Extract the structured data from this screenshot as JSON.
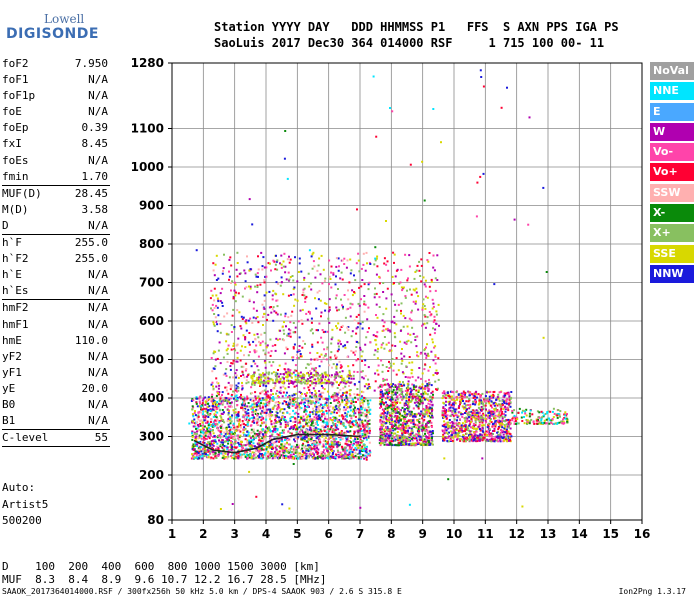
{
  "logo": {
    "line1": "Lowell",
    "line2": "DIGISONDE"
  },
  "header": {
    "line1": "Station YYYY DAY   DDD HHMMSS P1   FFS  S AXN PPS IGA PS",
    "line2": "SaoLuis 2017 Dec30 364 014000 RSF     1 715 100 00- 11"
  },
  "params": [
    {
      "k": "foF2",
      "v": "7.950"
    },
    {
      "k": "foF1",
      "v": "N/A"
    },
    {
      "k": "foF1p",
      "v": "N/A"
    },
    {
      "k": "foE",
      "v": "N/A"
    },
    {
      "k": "foEp",
      "v": "0.39"
    },
    {
      "k": "fxI",
      "v": "8.45"
    },
    {
      "k": "foEs",
      "v": "N/A"
    },
    {
      "k": "fmin",
      "v": "1.70"
    },
    {
      "k": "MUF(D)",
      "v": "28.45"
    },
    {
      "k": "M(D)",
      "v": "3.58"
    },
    {
      "k": "D",
      "v": "N/A"
    },
    {
      "k": "h`F",
      "v": "255.0"
    },
    {
      "k": "h`F2",
      "v": "255.0"
    },
    {
      "k": "h`E",
      "v": "N/A"
    },
    {
      "k": "h`Es",
      "v": "N/A"
    },
    {
      "k": "hmF2",
      "v": "N/A"
    },
    {
      "k": "hmF1",
      "v": "N/A"
    },
    {
      "k": "hmE",
      "v": "110.0"
    },
    {
      "k": "yF2",
      "v": "N/A"
    },
    {
      "k": "yF1",
      "v": "N/A"
    },
    {
      "k": "yE",
      "v": "20.0"
    },
    {
      "k": "B0",
      "v": "N/A"
    },
    {
      "k": "B1",
      "v": "N/A"
    },
    {
      "k": "C-level",
      "v": "55"
    }
  ],
  "auto": {
    "line1": "Auto:",
    "line2": "Artist5",
    "line3": "500200"
  },
  "bottom": {
    "d_line": "D    100  200  400  600  800 1000 1500 3000 [km]",
    "muf_line": "MUF  8.3  8.4  8.9  9.6 10.7 12.2 16.7 28.5 [MHz]"
  },
  "footer": {
    "left": "SAAOK_2017364014000.RSF / 300fx256h 50 kHz 5.0 km / DPS-4 SAAOK 903 / 2.6 S 315.8 E",
    "right": "Ion2Png 1.3.17"
  },
  "legend": [
    {
      "label": "NoVal",
      "bg": "#a0a0a0",
      "fg": "#ffffff"
    },
    {
      "label": "NNE",
      "bg": "#00e5ff",
      "fg": "#ffffff"
    },
    {
      "label": "E",
      "bg": "#4aa8ff",
      "fg": "#ffffff"
    },
    {
      "label": "W",
      "bg": "#b000b0",
      "fg": "#ffffff"
    },
    {
      "label": "Vo-",
      "bg": "#ff44aa",
      "fg": "#ffffff"
    },
    {
      "label": "Vo+",
      "bg": "#ff0033",
      "fg": "#ffffff"
    },
    {
      "label": "SSW",
      "bg": "#ffb0b0",
      "fg": "#ffffff"
    },
    {
      "label": "X-",
      "bg": "#0a8a0a",
      "fg": "#ffffff"
    },
    {
      "label": "X+",
      "bg": "#88c060",
      "fg": "#ffffff"
    },
    {
      "label": "SSE",
      "bg": "#d8d800",
      "fg": "#ffffff"
    },
    {
      "label": "NNW",
      "bg": "#1a1adc",
      "fg": "#ffffff"
    }
  ],
  "chart_data": {
    "type": "scatter",
    "x_ticks": [
      1,
      2,
      3,
      4,
      5,
      6,
      7,
      8,
      9,
      10,
      11,
      12,
      13,
      14,
      15,
      16
    ],
    "y_ticks": [
      80,
      200,
      300,
      400,
      500,
      600,
      700,
      800,
      900,
      1000,
      1100,
      1280
    ],
    "xlim": [
      1,
      16
    ],
    "ylim": [
      80,
      1280
    ],
    "grid": true,
    "clusters": [
      {
        "x": [
          1.6,
          7.3
        ],
        "y": [
          245,
          410
        ],
        "n": 2600,
        "palette": [
          "#ff0033",
          "#ff44aa",
          "#b000b0",
          "#d8d800",
          "#0a8a0a",
          "#1a1adc",
          "#88c060",
          "#00e5ff",
          "#ffb0b0"
        ]
      },
      {
        "x": [
          7.6,
          9.3
        ],
        "y": [
          280,
          440
        ],
        "n": 900,
        "palette": [
          "#ff0033",
          "#ff44aa",
          "#b000b0",
          "#d8d800",
          "#1a1adc",
          "#0a8a0a",
          "#88c060"
        ]
      },
      {
        "x": [
          9.6,
          11.8
        ],
        "y": [
          290,
          420
        ],
        "n": 900,
        "palette": [
          "#ff0033",
          "#ff44aa",
          "#b000b0",
          "#d8d800",
          "#1a1adc",
          "#88c060"
        ]
      },
      {
        "x": [
          11.8,
          13.6
        ],
        "y": [
          335,
          375
        ],
        "n": 140,
        "palette": [
          "#ff0033",
          "#ff44aa",
          "#d8d800",
          "#0a8a0a",
          "#88c060",
          "#00e5ff"
        ]
      },
      {
        "x": [
          2.2,
          7.3
        ],
        "y": [
          410,
          780
        ],
        "n": 900,
        "palette": [
          "#b000b0",
          "#ff44aa",
          "#d8d800",
          "#88c060",
          "#ff0033",
          "#1a1adc",
          "#ffb0b0"
        ]
      },
      {
        "x": [
          3.5,
          6.8
        ],
        "y": [
          440,
          470
        ],
        "n": 260,
        "palette": [
          "#d8d800",
          "#88c060",
          "#b000b0"
        ]
      },
      {
        "x": [
          7.4,
          9.5
        ],
        "y": [
          420,
          780
        ],
        "n": 320,
        "palette": [
          "#b000b0",
          "#ff44aa",
          "#d8d800",
          "#88c060",
          "#ff0033"
        ]
      },
      {
        "x": [
          1.5,
          13.0
        ],
        "y": [
          90,
          1280
        ],
        "n": 70,
        "palette": [
          "#b000b0",
          "#ff0033",
          "#1a1adc",
          "#ff44aa",
          "#00e5ff",
          "#0a8a0a",
          "#d8d800"
        ]
      }
    ],
    "traces": [
      {
        "name": "virtual height trace",
        "color": "#222222",
        "points": [
          [
            1.7,
            290
          ],
          [
            2.3,
            265
          ],
          [
            3.0,
            258
          ],
          [
            3.7,
            270
          ],
          [
            4.2,
            292
          ],
          [
            5.0,
            305
          ],
          [
            6.0,
            305
          ],
          [
            7.0,
            300
          ]
        ]
      }
    ]
  }
}
